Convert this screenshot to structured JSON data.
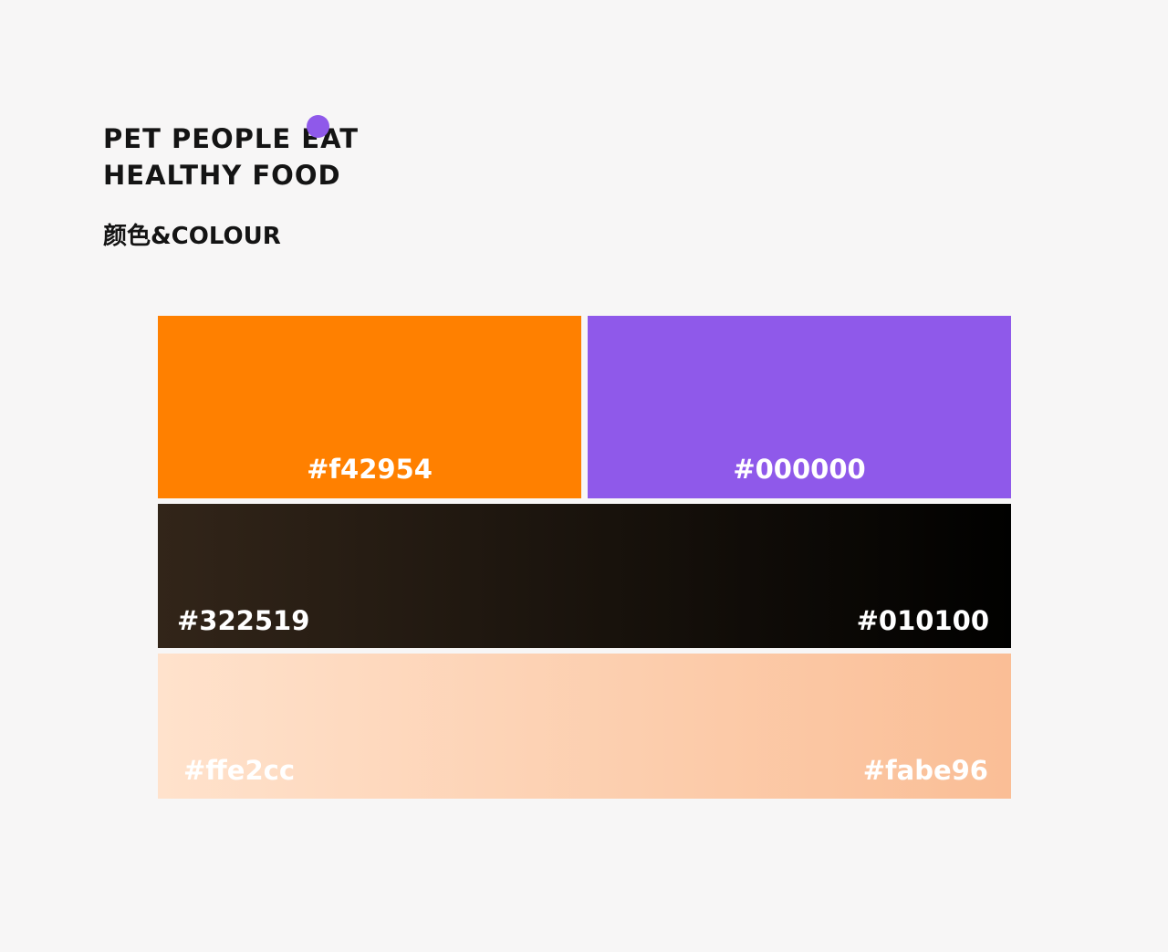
{
  "header": {
    "title_line1": "PET PEOPLE EAT",
    "title_line2": "HEALTHY FOOD",
    "subtitle": "颜色&COLOUR",
    "accent_dot_color": "#8f59ea"
  },
  "palette": {
    "orange": {
      "label": "#f42954",
      "fill": "#ff8000",
      "label_color": "#ffffff"
    },
    "purple": {
      "label": "#000000",
      "fill": "#8f59ea",
      "label_color": "#ffffff"
    },
    "dark_gradient": {
      "start_label": "#322519",
      "end_label": "#010100",
      "start_fill": "#322519",
      "end_fill": "#010100",
      "label_color": "#ffffff"
    },
    "peach_gradient": {
      "start_label": "#ffe2cc",
      "end_label": "#fabe96",
      "start_fill": "#ffe2cc",
      "end_fill": "#fabe96",
      "label_color": "#ffffff"
    }
  }
}
